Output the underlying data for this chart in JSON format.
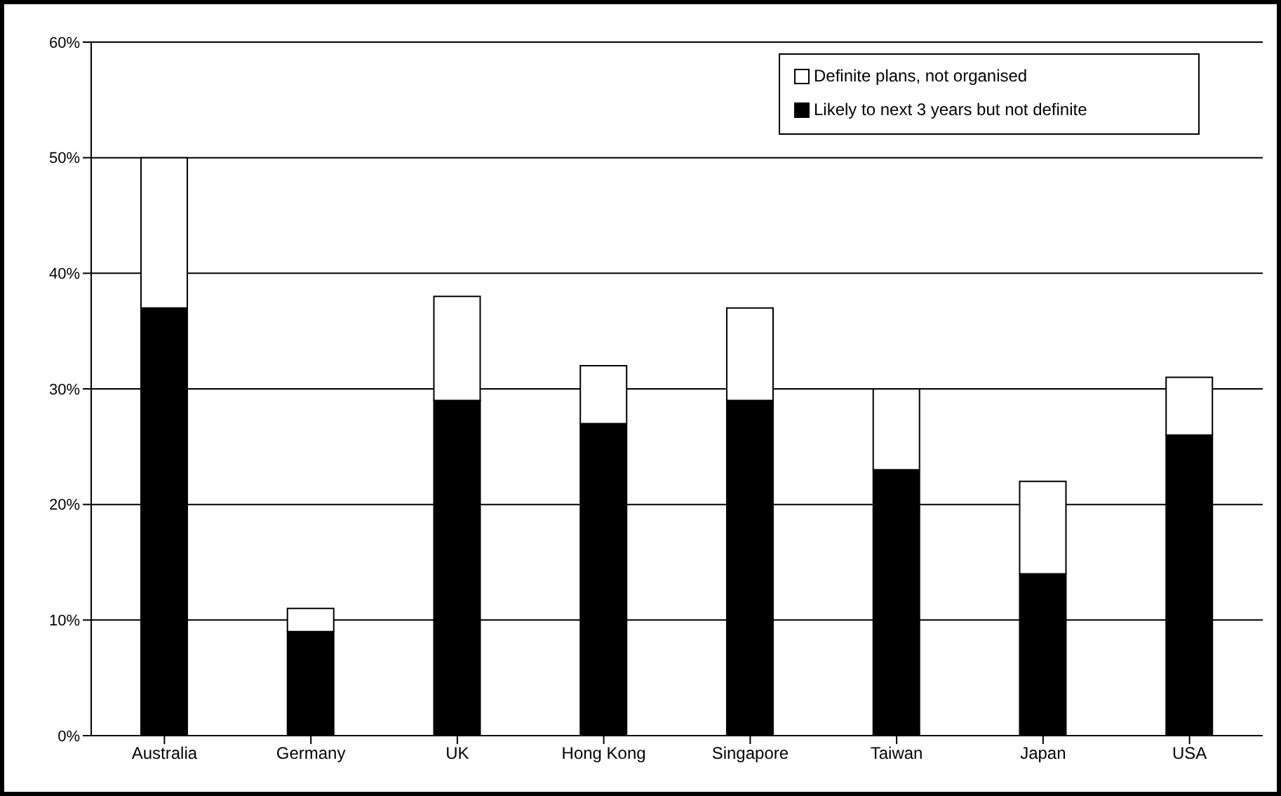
{
  "chart_data": {
    "type": "bar",
    "stacked": true,
    "categories": [
      "Australia",
      "Germany",
      "UK",
      "Hong Kong",
      "Singapore",
      "Taiwan",
      "Japan",
      "USA"
    ],
    "series": [
      {
        "name": "Likely to next 3 years but not definite",
        "color": "#000000",
        "values": [
          37,
          9,
          29,
          27,
          29,
          23,
          14,
          26
        ]
      },
      {
        "name": "Definite plans, not organised",
        "color": "#ffffff",
        "values": [
          13,
          2,
          9,
          5,
          8,
          7,
          8,
          5
        ]
      }
    ],
    "ylim": [
      0,
      60
    ],
    "yticks": [
      {
        "value": 0,
        "label": "0%"
      },
      {
        "value": 10,
        "label": "10%"
      },
      {
        "value": 20,
        "label": "20%"
      },
      {
        "value": 30,
        "label": "30%"
      },
      {
        "value": 40,
        "label": "40%"
      },
      {
        "value": 50,
        "label": "50%"
      },
      {
        "value": 60,
        "label": "60%"
      }
    ],
    "grid": "y",
    "legend": "top right"
  }
}
